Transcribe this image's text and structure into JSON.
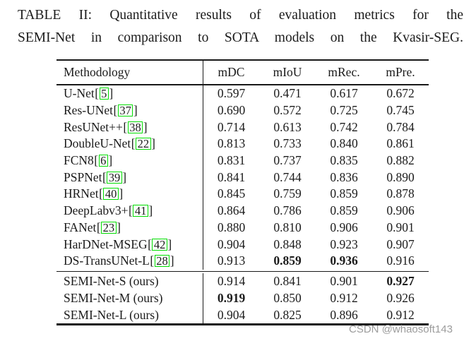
{
  "caption": {
    "line1": "TABLE II: Quantitative results of evaluation metrics for the",
    "line2": "SEMI-Net in comparison to SOTA models on the Kvasir-SEG."
  },
  "watermark": "CSDN @whaosoft143",
  "colors": {
    "citation_box": "#00dd00",
    "text": "#1b1b1b",
    "watermark": "#9c9c9c"
  },
  "table": {
    "columns": [
      "Methodology",
      "mDC",
      "mIoU",
      "mRec.",
      "mPre."
    ],
    "sota_rows": [
      {
        "method": "U-Net",
        "cite": "5",
        "values": [
          "0.597",
          "0.471",
          "0.617",
          "0.672"
        ],
        "bold": [
          0,
          0,
          0,
          0
        ]
      },
      {
        "method": "Res-UNet",
        "cite": "37",
        "values": [
          "0.690",
          "0.572",
          "0.725",
          "0.745"
        ],
        "bold": [
          0,
          0,
          0,
          0
        ]
      },
      {
        "method": "ResUNet++",
        "cite": "38",
        "values": [
          "0.714",
          "0.613",
          "0.742",
          "0.784"
        ],
        "bold": [
          0,
          0,
          0,
          0
        ]
      },
      {
        "method": "DoubleU-Net",
        "cite": "22",
        "values": [
          "0.813",
          "0.733",
          "0.840",
          "0.861"
        ],
        "bold": [
          0,
          0,
          0,
          0
        ]
      },
      {
        "method": "FCN8",
        "cite": "6",
        "values": [
          "0.831",
          "0.737",
          "0.835",
          "0.882"
        ],
        "bold": [
          0,
          0,
          0,
          0
        ]
      },
      {
        "method": "PSPNet",
        "cite": "39",
        "values": [
          "0.841",
          "0.744",
          "0.836",
          "0.890"
        ],
        "bold": [
          0,
          0,
          0,
          0
        ]
      },
      {
        "method": "HRNet",
        "cite": "40",
        "values": [
          "0.845",
          "0.759",
          "0.859",
          "0.878"
        ],
        "bold": [
          0,
          0,
          0,
          0
        ]
      },
      {
        "method": "DeepLabv3+",
        "cite": "41",
        "values": [
          "0.864",
          "0.786",
          "0.859",
          "0.906"
        ],
        "bold": [
          0,
          0,
          0,
          0
        ]
      },
      {
        "method": "FANet",
        "cite": "23",
        "values": [
          "0.880",
          "0.810",
          "0.906",
          "0.901"
        ],
        "bold": [
          0,
          0,
          0,
          0
        ]
      },
      {
        "method": "HarDNet-MSEG",
        "cite": "42",
        "values": [
          "0.904",
          "0.848",
          "0.923",
          "0.907"
        ],
        "bold": [
          0,
          0,
          0,
          0
        ]
      },
      {
        "method": "DS-TransUNet-L",
        "cite": "28",
        "values": [
          "0.913",
          "0.859",
          "0.936",
          "0.916"
        ],
        "bold": [
          0,
          1,
          1,
          0
        ]
      }
    ],
    "ours_rows": [
      {
        "method": "SEMI-Net-S (ours)",
        "cite": null,
        "values": [
          "0.914",
          "0.841",
          "0.901",
          "0.927"
        ],
        "bold": [
          0,
          0,
          0,
          1
        ]
      },
      {
        "method": "SEMI-Net-M (ours)",
        "cite": null,
        "values": [
          "0.919",
          "0.850",
          "0.912",
          "0.926"
        ],
        "bold": [
          1,
          0,
          0,
          0
        ]
      },
      {
        "method": "SEMI-Net-L (ours)",
        "cite": null,
        "values": [
          "0.904",
          "0.825",
          "0.896",
          "0.912"
        ],
        "bold": [
          0,
          0,
          0,
          0
        ]
      }
    ]
  }
}
